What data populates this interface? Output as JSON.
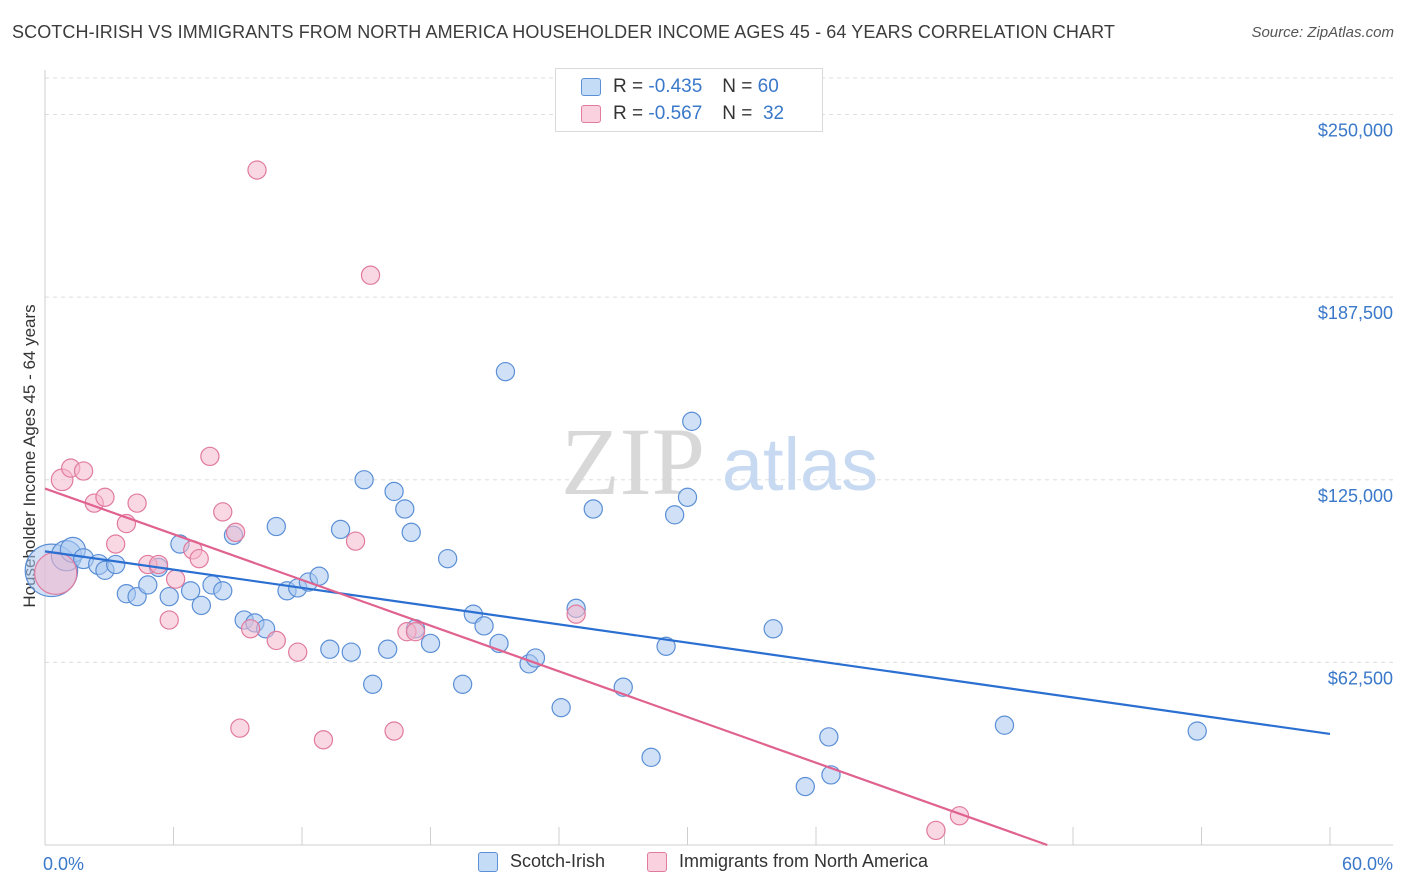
{
  "title": "SCOTCH-IRISH VS IMMIGRANTS FROM NORTH AMERICA HOUSEHOLDER INCOME AGES 45 - 64 YEARS CORRELATION CHART",
  "source": "Source: ZipAtlas.com",
  "watermark": {
    "part1": "ZIP",
    "part2": "atlas"
  },
  "legend": {
    "r_label": "R =",
    "n_label": "N =",
    "rows": [
      {
        "r": "-0.435",
        "n": "60"
      },
      {
        "r": "-0.567",
        "n": "32"
      }
    ]
  },
  "bottom_legend": [
    "Scotch-Irish",
    "Immigrants from North America"
  ],
  "colors": {
    "blue_fill": "#a9c8f0",
    "blue_stroke": "#5b8fd6",
    "blue_line": "#2a6fd1",
    "pink_fill": "#f6b8cc",
    "pink_stroke": "#e07a9e",
    "pink_line": "#e0628f",
    "axis_text": "#3a78c9",
    "grid": "#dddddd"
  },
  "chart_data": {
    "type": "scatter",
    "title": "SCOTCH-IRISH VS IMMIGRANTS FROM NORTH AMERICA HOUSEHOLDER INCOME AGES 45 - 64 YEARS CORRELATION CHART",
    "xlabel": "",
    "ylabel": "Householder Income Ages 45 - 64 years",
    "xlim": [
      0,
      60
    ],
    "ylim": [
      0,
      262500
    ],
    "x_tick_labels": [
      "0.0%",
      "60.0%"
    ],
    "y_ticks": [
      62500,
      125000,
      187500,
      250000
    ],
    "y_tick_labels": [
      "$62,500",
      "$125,000",
      "$187,500",
      "$250,000"
    ],
    "grid": "horizontal dashed",
    "series": [
      {
        "name": "Scotch-Irish",
        "r": -0.435,
        "n": 60,
        "trend": {
          "x": [
            0,
            60
          ],
          "y": [
            100500,
            38000
          ]
        },
        "points": [
          [
            0.3,
            94000,
            30
          ],
          [
            1.0,
            99000,
            17
          ],
          [
            1.3,
            101000,
            14
          ],
          [
            1.8,
            98000,
            11
          ],
          [
            2.5,
            96000,
            11
          ],
          [
            2.8,
            94000,
            10
          ],
          [
            3.3,
            96000,
            10
          ],
          [
            3.8,
            86000,
            10
          ],
          [
            4.3,
            85000,
            10
          ],
          [
            4.8,
            89000,
            10
          ],
          [
            5.3,
            95000,
            10
          ],
          [
            5.8,
            85000,
            10
          ],
          [
            6.3,
            103000,
            10
          ],
          [
            6.8,
            87000,
            10
          ],
          [
            7.3,
            82000,
            10
          ],
          [
            7.8,
            89000,
            10
          ],
          [
            8.3,
            87000,
            10
          ],
          [
            8.8,
            106000,
            10
          ],
          [
            9.3,
            77000,
            10
          ],
          [
            9.8,
            76000,
            10
          ],
          [
            10.3,
            74000,
            10
          ],
          [
            10.8,
            109000,
            10
          ],
          [
            11.3,
            87000,
            10
          ],
          [
            11.8,
            88000,
            10
          ],
          [
            12.3,
            90000,
            10
          ],
          [
            12.8,
            92000,
            10
          ],
          [
            13.3,
            67000,
            10
          ],
          [
            13.8,
            108000,
            10
          ],
          [
            14.3,
            66000,
            10
          ],
          [
            14.9,
            125000,
            10
          ],
          [
            15.3,
            55000,
            10
          ],
          [
            16.0,
            67000,
            10
          ],
          [
            16.3,
            121000,
            10
          ],
          [
            16.8,
            115000,
            10
          ],
          [
            17.1,
            107000,
            10
          ],
          [
            17.3,
            74000,
            10
          ],
          [
            18.0,
            69000,
            10
          ],
          [
            18.8,
            98000,
            10
          ],
          [
            19.5,
            55000,
            10
          ],
          [
            20.0,
            79000,
            10
          ],
          [
            20.5,
            75000,
            10
          ],
          [
            21.2,
            69000,
            10
          ],
          [
            21.5,
            162000,
            10
          ],
          [
            22.6,
            62000,
            10
          ],
          [
            22.9,
            64000,
            10
          ],
          [
            24.1,
            47000,
            10
          ],
          [
            24.8,
            81000,
            10
          ],
          [
            25.6,
            115000,
            10
          ],
          [
            27.0,
            54000,
            10
          ],
          [
            28.3,
            30000,
            10
          ],
          [
            29.0,
            68000,
            10
          ],
          [
            29.4,
            113000,
            10
          ],
          [
            30.0,
            119000,
            10
          ],
          [
            30.2,
            145000,
            10
          ],
          [
            34.0,
            74000,
            10
          ],
          [
            35.5,
            20000,
            10
          ],
          [
            36.6,
            37000,
            10
          ],
          [
            36.7,
            24000,
            10
          ],
          [
            44.8,
            41000,
            10
          ],
          [
            53.8,
            39000,
            10
          ]
        ]
      },
      {
        "name": "Immigrants from North America",
        "r": -0.567,
        "n": 32,
        "trend": {
          "x": [
            0,
            46.8
          ],
          "y": [
            122000,
            0
          ]
        },
        "points": [
          [
            0.5,
            93000,
            24
          ],
          [
            0.8,
            125000,
            12
          ],
          [
            1.2,
            129000,
            10
          ],
          [
            1.8,
            128000,
            10
          ],
          [
            2.3,
            117000,
            10
          ],
          [
            2.8,
            119000,
            10
          ],
          [
            3.3,
            103000,
            10
          ],
          [
            3.8,
            110000,
            10
          ],
          [
            4.3,
            117000,
            10
          ],
          [
            4.8,
            96000,
            10
          ],
          [
            5.3,
            96000,
            10
          ],
          [
            5.8,
            77000,
            10
          ],
          [
            6.1,
            91000,
            10
          ],
          [
            6.9,
            101000,
            10
          ],
          [
            7.2,
            98000,
            10
          ],
          [
            7.7,
            133000,
            10
          ],
          [
            8.3,
            114000,
            10
          ],
          [
            8.9,
            107000,
            10
          ],
          [
            9.1,
            40000,
            10
          ],
          [
            9.6,
            74000,
            10
          ],
          [
            9.9,
            231000,
            10
          ],
          [
            10.8,
            70000,
            10
          ],
          [
            11.8,
            66000,
            10
          ],
          [
            13.0,
            36000,
            10
          ],
          [
            14.5,
            104000,
            10
          ],
          [
            15.2,
            195000,
            10
          ],
          [
            16.3,
            39000,
            10
          ],
          [
            16.9,
            73000,
            10
          ],
          [
            17.3,
            73000,
            10
          ],
          [
            24.8,
            79000,
            10
          ],
          [
            41.6,
            5000,
            10
          ],
          [
            42.7,
            10000,
            10
          ]
        ]
      }
    ]
  }
}
